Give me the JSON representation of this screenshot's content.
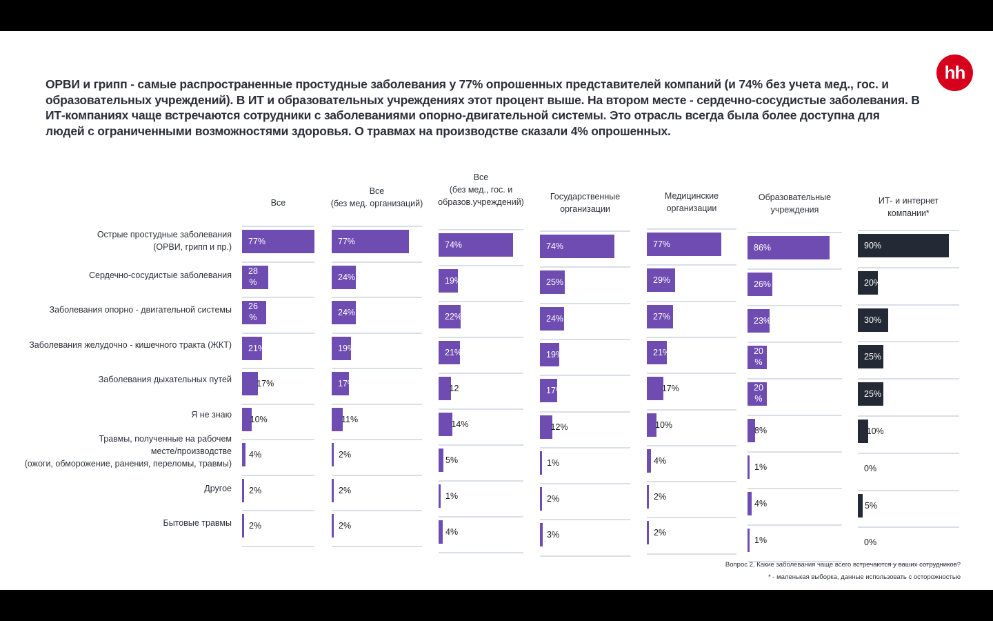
{
  "title": "ОРВИ и грипп - самые распространенные простудные заболевания у 77% опрошенных представителей компаний (и 74% без учета мед., гос. и образовательных учреждений). В ИТ и образовательных учреждениях этот процент выше. На втором месте - сердечно-сосудистые заболевания. В ИТ-компаниях чаще встречаются сотрудники с заболеваниями опорно-двигательной системы. Это отрасль всегда была более доступна для людей с ограниченными возможностями здоровья. О травмах на производстве сказали 4% опрошенных.",
  "logo": {
    "text": "hh",
    "color": "#d6001c"
  },
  "footnotes": {
    "question": "Вопрос 2. Какие заболевания чаще всего встречаются у ваших сотрудников?",
    "note": "* - маленькая выборка, данные использовать с осторожностью"
  },
  "chart_data": {
    "type": "bar",
    "orientation": "horizontal",
    "title": "Какие заболевания чаще всего встречаются у ваших сотрудников?",
    "unit": "%",
    "categories": [
      "Острые простудные заболевания\n(ОРВИ, грипп и пр.)",
      "Сердечно-сосудистые заболевания",
      "Заболевания опорно - двигательной системы",
      "Заболевания желудочно - кишечного тракта (ЖКТ)",
      "Заболевания дыхательных путей",
      "Я не знаю",
      "Травмы, полученные на рабочем\nместе/производстве\n(ожоги, обморожение, ранения, переломы, травмы)",
      "Другое",
      "Бытовые травмы"
    ],
    "series": [
      {
        "name": "Все",
        "color": "#6e4cb2",
        "values": [
          77,
          28,
          26,
          21,
          17,
          10,
          4,
          2,
          2
        ]
      },
      {
        "name": "Все\n(без мед. организаций)",
        "color": "#6e4cb2",
        "values": [
          77,
          24,
          24,
          19,
          17,
          11,
          2,
          2,
          2
        ]
      },
      {
        "name": "Все\n(без мед., гос. и\nобразов.учреждений)",
        "color": "#6e4cb2",
        "values": [
          74,
          19,
          22,
          21,
          12,
          14,
          5,
          1,
          4
        ]
      },
      {
        "name": "Государственные\nорганизации",
        "color": "#6e4cb2",
        "values": [
          74,
          25,
          24,
          19,
          17,
          12,
          1,
          2,
          3
        ]
      },
      {
        "name": "Медицинские\nорганизации",
        "color": "#6e4cb2",
        "values": [
          77,
          29,
          27,
          21,
          17,
          10,
          4,
          2,
          2
        ]
      },
      {
        "name": "Образовательные\nучреждения",
        "color": "#6e4cb2",
        "values": [
          86,
          26,
          23,
          20,
          20,
          8,
          1,
          4,
          1
        ]
      },
      {
        "name": "ИТ- и интернет\nкомпании*",
        "color": "#232a35",
        "values": [
          90,
          20,
          30,
          25,
          25,
          10,
          0,
          5,
          0
        ]
      }
    ],
    "labels": [
      [
        "77%",
        "28\n%",
        "26\n%",
        "21%",
        "17%",
        "10%",
        "4%",
        "2%",
        "2%"
      ],
      [
        "77%",
        "24%",
        "24%",
        "19%",
        "17%",
        "11%",
        "2%",
        "2%",
        "2%"
      ],
      [
        "74%",
        "19%",
        "22%",
        "21%",
        "12",
        "14%",
        "5%",
        "1%",
        "4%"
      ],
      [
        "74%",
        "25%",
        "24%",
        "19%",
        "17%",
        "12%",
        "1%",
        "2%",
        "3%"
      ],
      [
        "77%",
        "29%",
        "27%",
        "21%",
        "17%",
        "10%",
        "4%",
        "2%",
        "2%"
      ],
      [
        "86%",
        "26%",
        "23%",
        "20\n%",
        "20\n%",
        "8%",
        "1%",
        "4%",
        "1%"
      ],
      [
        "90%",
        "20%",
        "30%",
        "25%",
        "25%",
        "10%",
        "0%",
        "5%",
        "0%"
      ]
    ],
    "xlim": [
      0,
      100
    ],
    "grid": false,
    "legend": "column-headers-top"
  }
}
